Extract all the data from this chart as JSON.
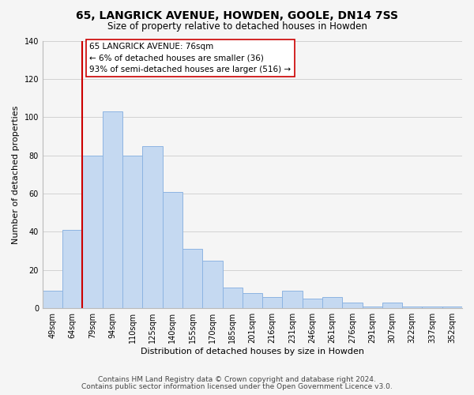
{
  "title": "65, LANGRICK AVENUE, HOWDEN, GOOLE, DN14 7SS",
  "subtitle": "Size of property relative to detached houses in Howden",
  "xlabel": "Distribution of detached houses by size in Howden",
  "ylabel": "Number of detached properties",
  "categories": [
    "49sqm",
    "64sqm",
    "79sqm",
    "94sqm",
    "110sqm",
    "125sqm",
    "140sqm",
    "155sqm",
    "170sqm",
    "185sqm",
    "201sqm",
    "216sqm",
    "231sqm",
    "246sqm",
    "261sqm",
    "276sqm",
    "291sqm",
    "307sqm",
    "322sqm",
    "337sqm",
    "352sqm"
  ],
  "values": [
    9,
    41,
    80,
    103,
    80,
    85,
    61,
    31,
    25,
    11,
    8,
    6,
    9,
    5,
    6,
    3,
    1,
    3,
    1,
    1,
    1
  ],
  "bar_color": "#c5d9f1",
  "bar_edge_color": "#8db4e2",
  "vline_x_index": 1,
  "vline_color": "#cc0000",
  "annotation_text": "65 LANGRICK AVENUE: 76sqm\n← 6% of detached houses are smaller (36)\n93% of semi-detached houses are larger (516) →",
  "annotation_box_edge": "#cc0000",
  "annotation_box_fill": "white",
  "ylim": [
    0,
    140
  ],
  "yticks": [
    0,
    20,
    40,
    60,
    80,
    100,
    120,
    140
  ],
  "footer_line1": "Contains HM Land Registry data © Crown copyright and database right 2024.",
  "footer_line2": "Contains public sector information licensed under the Open Government Licence v3.0.",
  "background_color": "#f5f5f5",
  "grid_color": "#cccccc",
  "title_fontsize": 10,
  "subtitle_fontsize": 8.5,
  "axis_label_fontsize": 8,
  "tick_fontsize": 7,
  "annotation_fontsize": 7.5,
  "footer_fontsize": 6.5
}
